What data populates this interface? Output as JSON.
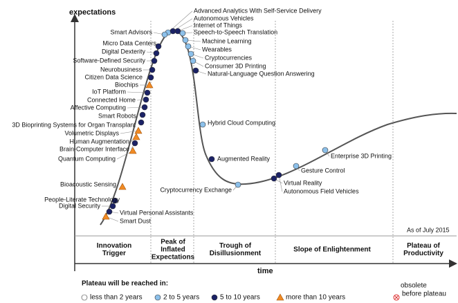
{
  "header": {
    "y_axis": "expectations",
    "x_axis": "time",
    "as_of": "As of July 2015"
  },
  "phases": [
    {
      "lines": [
        "Innovation",
        "Trigger"
      ]
    },
    {
      "lines": [
        "Peak of",
        "Inflated",
        "Expectations"
      ]
    },
    {
      "lines": [
        "Trough of",
        "Disillusionment"
      ]
    },
    {
      "lines": [
        "Slope of Enlightenment"
      ]
    },
    {
      "lines": [
        "Plateau of",
        "Productivity"
      ]
    }
  ],
  "nodes": [
    {
      "label": "Advanced Analytics With Self-Service Delivery"
    },
    {
      "label": "Autonomous Vehicles"
    },
    {
      "label": "Internet of Things"
    },
    {
      "label": "Speech-to-Speech Translation"
    },
    {
      "label": "Machine Learning"
    },
    {
      "label": "Wearables"
    },
    {
      "label": "Cryptocurrencies"
    },
    {
      "label": "Consumer 3D Printing"
    },
    {
      "label": "Natural-Language Question Answering"
    },
    {
      "label": "Smart Advisors"
    },
    {
      "label": "Micro Data Centers"
    },
    {
      "label": "Digital Dexterity"
    },
    {
      "label": "Software-Defined Security"
    },
    {
      "label": "Neurobusiness"
    },
    {
      "label": "Citizen Data Science"
    },
    {
      "label": "Biochips"
    },
    {
      "label": "IoT Platform"
    },
    {
      "label": "Connected Home"
    },
    {
      "label": "Affective  Computing"
    },
    {
      "label": "Smart Robots"
    },
    {
      "label": "3D Bioprinting Systems for Organ Transplant"
    },
    {
      "label": "Volumetric Displays"
    },
    {
      "label": "Human Augmentation"
    },
    {
      "label": "Brain-Computer Interface"
    },
    {
      "label": "Quantum Computing"
    },
    {
      "label": "Bioacoustic Sensing"
    },
    {
      "label": "People-Literate Technology"
    },
    {
      "label": "Digital Security"
    },
    {
      "label": "Virtual Personal Assistants"
    },
    {
      "label": "Smart Dust"
    },
    {
      "label": "Hybrid Cloud Computing"
    },
    {
      "label": "Augmented Reality"
    },
    {
      "label": "Cryptocurrency Exchange"
    },
    {
      "label": "Virtual Reality"
    },
    {
      "label": "Autonomous Field Vehicles"
    },
    {
      "label": "Gesture Control"
    },
    {
      "label": "Enterprise 3D Printing"
    }
  ],
  "legend": {
    "title": "Plateau will be reached in:",
    "items": [
      {
        "label": "less than 2 years"
      },
      {
        "label": "2 to 5 years"
      },
      {
        "label": "5 to 10 years"
      },
      {
        "label": "more than 10 years"
      },
      {
        "lines": [
          "obsolete",
          "before plateau"
        ]
      }
    ]
  }
}
